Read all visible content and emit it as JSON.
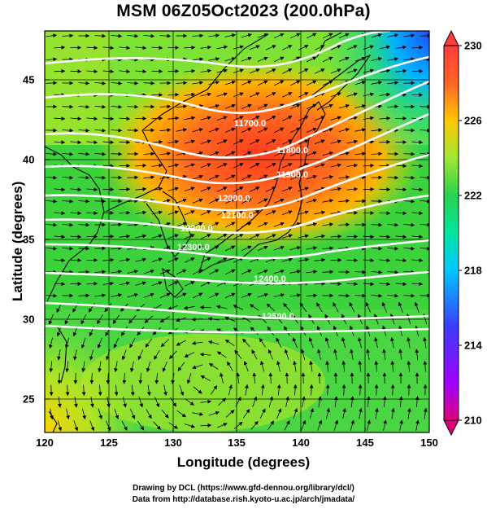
{
  "title": "MSM 06Z05Oct2023 (200.0hPa)",
  "axes": {
    "xlabel": "Longitude (degrees)",
    "ylabel": "Latitude  (degrees)",
    "xlim": [
      120,
      150
    ],
    "ylim": [
      22.5,
      47.6
    ],
    "xticks": [
      "120",
      "125",
      "130",
      "135",
      "140",
      "145",
      "150"
    ],
    "yticks": [
      "25",
      "30",
      "35",
      "40",
      "45"
    ]
  },
  "colorbar": {
    "min": 210,
    "max": 230,
    "ticks": [
      "230",
      "226",
      "222",
      "218",
      "214",
      "210"
    ],
    "colors": [
      "#e0007a",
      "#a000ff",
      "#3c3cff",
      "#00c8ff",
      "#00e6a0",
      "#28d250",
      "#a0e632",
      "#ffc800",
      "#ff6428",
      "#ff3c3c"
    ]
  },
  "contours": {
    "color": "#ffffff",
    "labels": [
      "11700.0",
      "11800.0",
      "11900.0",
      "12000.0",
      "12100.0",
      "12200.0",
      "12300.0",
      "12400.0",
      "12500.0"
    ]
  },
  "footer": {
    "line1": "Drawing by DCL (https://www.gfd-dennou.org/library/dcl/)",
    "line2": "Data from http://database.rish.kyoto-u.ac.jp/arch/jmadata/"
  }
}
